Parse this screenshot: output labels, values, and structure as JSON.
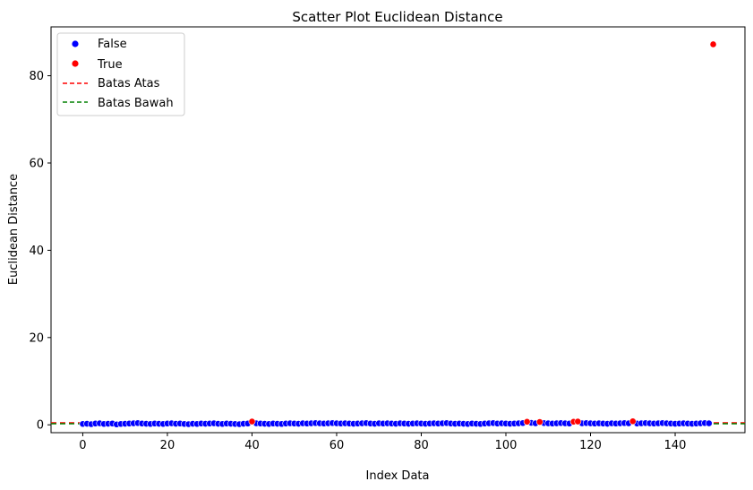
{
  "chart_data": {
    "type": "scatter",
    "title": "Scatter Plot Euclidean Distance",
    "xlabel": "Index Data",
    "ylabel": "Euclidean Distance",
    "xlim": [
      -7.5,
      156.5
    ],
    "ylim": [
      -1.8,
      91.2
    ],
    "xticks": [
      0,
      20,
      40,
      60,
      80,
      100,
      120,
      140
    ],
    "yticks": [
      0,
      20,
      40,
      60,
      80
    ],
    "grid": false,
    "legend_position": "top-left",
    "legend": [
      {
        "label": "False",
        "kind": "marker",
        "color": "#0000ff"
      },
      {
        "label": "True",
        "kind": "marker",
        "color": "#ff0000"
      },
      {
        "label": "Batas Atas",
        "kind": "dashed-line",
        "color": "#ff0000"
      },
      {
        "label": "Batas Bawah",
        "kind": "dashed-line",
        "color": "#008000"
      }
    ],
    "thresholds": [
      {
        "name": "Batas Atas",
        "y": 0.45,
        "color": "#ff0000"
      },
      {
        "name": "Batas Bawah",
        "y": 0.25,
        "color": "#008000"
      }
    ],
    "series": [
      {
        "name": "False",
        "color": "#0000ff",
        "x": [
          0,
          1,
          2,
          3,
          4,
          5,
          6,
          7,
          8,
          9,
          10,
          11,
          12,
          13,
          14,
          15,
          16,
          17,
          18,
          19,
          20,
          21,
          22,
          23,
          24,
          25,
          26,
          27,
          28,
          29,
          30,
          31,
          32,
          33,
          34,
          35,
          36,
          37,
          38,
          39,
          41,
          42,
          43,
          44,
          45,
          46,
          47,
          48,
          49,
          50,
          51,
          52,
          53,
          54,
          55,
          56,
          57,
          58,
          59,
          60,
          61,
          62,
          63,
          64,
          65,
          66,
          67,
          68,
          69,
          70,
          71,
          72,
          73,
          74,
          75,
          76,
          77,
          78,
          79,
          80,
          81,
          82,
          83,
          84,
          85,
          86,
          87,
          88,
          89,
          90,
          91,
          92,
          93,
          94,
          95,
          96,
          97,
          98,
          99,
          100,
          101,
          102,
          103,
          104,
          106,
          107,
          109,
          110,
          111,
          112,
          113,
          114,
          115,
          118,
          119,
          120,
          121,
          122,
          123,
          124,
          125,
          126,
          127,
          128,
          129,
          131,
          132,
          133,
          134,
          135,
          136,
          137,
          138,
          139,
          140,
          141,
          142,
          143,
          144,
          145,
          146,
          147,
          148
        ],
        "y": [
          0.2,
          0.25,
          0.15,
          0.3,
          0.35,
          0.2,
          0.25,
          0.3,
          0.1,
          0.2,
          0.25,
          0.3,
          0.35,
          0.4,
          0.3,
          0.25,
          0.2,
          0.3,
          0.25,
          0.2,
          0.3,
          0.35,
          0.25,
          0.3,
          0.2,
          0.15,
          0.25,
          0.2,
          0.3,
          0.25,
          0.3,
          0.35,
          0.25,
          0.2,
          0.3,
          0.25,
          0.2,
          0.15,
          0.25,
          0.3,
          0.35,
          0.3,
          0.25,
          0.2,
          0.3,
          0.25,
          0.2,
          0.3,
          0.35,
          0.3,
          0.25,
          0.35,
          0.3,
          0.35,
          0.4,
          0.35,
          0.3,
          0.35,
          0.4,
          0.35,
          0.3,
          0.35,
          0.3,
          0.25,
          0.3,
          0.35,
          0.4,
          0.3,
          0.25,
          0.35,
          0.3,
          0.35,
          0.3,
          0.25,
          0.35,
          0.3,
          0.25,
          0.3,
          0.35,
          0.3,
          0.25,
          0.3,
          0.35,
          0.3,
          0.35,
          0.4,
          0.3,
          0.25,
          0.3,
          0.25,
          0.2,
          0.3,
          0.25,
          0.2,
          0.3,
          0.35,
          0.4,
          0.3,
          0.35,
          0.3,
          0.25,
          0.3,
          0.35,
          0.4,
          0.45,
          0.35,
          0.4,
          0.35,
          0.3,
          0.35,
          0.4,
          0.35,
          0.3,
          0.35,
          0.4,
          0.35,
          0.3,
          0.35,
          0.3,
          0.25,
          0.35,
          0.3,
          0.35,
          0.4,
          0.35,
          0.3,
          0.35,
          0.4,
          0.35,
          0.3,
          0.35,
          0.4,
          0.35,
          0.3,
          0.25,
          0.3,
          0.35,
          0.3,
          0.25,
          0.3,
          0.35,
          0.4,
          0.35
        ]
      },
      {
        "name": "True",
        "color": "#ff0000",
        "x": [
          40,
          105,
          108,
          116,
          117,
          130,
          149
        ],
        "y": [
          0.75,
          0.7,
          0.65,
          0.7,
          0.75,
          0.8,
          87.2
        ]
      }
    ]
  }
}
